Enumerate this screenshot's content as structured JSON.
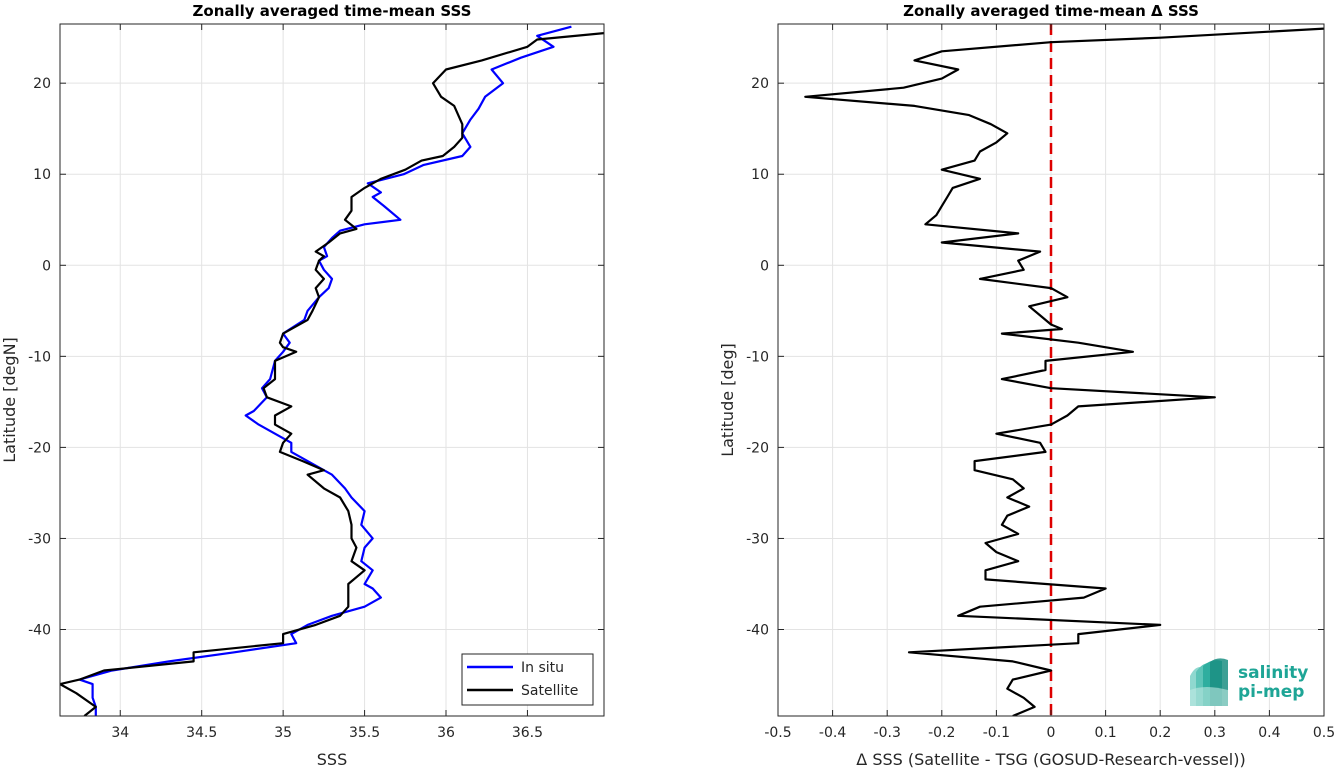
{
  "chart_data": [
    {
      "type": "line",
      "title": "Zonally averaged time-mean SSS",
      "xlabel": "SSS",
      "ylabel": "Latitude [degN]",
      "xlim": [
        33.63,
        36.97
      ],
      "ylim": [
        -49.5,
        26.5
      ],
      "xticks": [
        34,
        34.5,
        35,
        35.5,
        36,
        36.5
      ],
      "xtick_labels": [
        "34",
        "34.5",
        "35",
        "35.5",
        "36",
        "36.5"
      ],
      "yticks": [
        20,
        10,
        0,
        -10,
        -20,
        -30,
        -40
      ],
      "ytick_labels": [
        "20",
        "10",
        "0",
        "-10",
        "-20",
        "-30",
        "-40"
      ],
      "grid": true,
      "legend": "bottom-right",
      "series": [
        {
          "name": "In situ",
          "color": "#0000ff",
          "lat": [
            26.2,
            25.2,
            24.0,
            22.8,
            21.5,
            20.0,
            18.5,
            17.2,
            16.0,
            14.5,
            13.0,
            12.0,
            11.0,
            10.0,
            9.0,
            8.0,
            7.5,
            6.5,
            5.0,
            4.5,
            3.8,
            3.0,
            2.0,
            1.0,
            0.5,
            -0.5,
            -1.5,
            -2.5,
            -3.5,
            -5.0,
            -6.0,
            -7.5,
            -8.5,
            -9.5,
            -10.5,
            -12.5,
            -13.5,
            -14.5,
            -16.0,
            -16.5,
            -17.5,
            -18.5,
            -19.5,
            -20.5,
            -21.5,
            -22.5,
            -23.0,
            -24.5,
            -25.5,
            -27.0,
            -28.5,
            -30.0,
            -31.0,
            -32.5,
            -33.5,
            -35.0,
            -35.5,
            -36.5,
            -37.5,
            -38.5,
            -39.5,
            -40.5,
            -41.5,
            -42.5,
            -43.5,
            -44.5,
            -45.5,
            -46.0,
            -47.5,
            -48.5,
            -49.5
          ],
          "values": [
            36.77,
            36.56,
            36.66,
            36.46,
            36.28,
            36.35,
            36.24,
            36.2,
            36.15,
            36.1,
            36.15,
            36.1,
            35.86,
            35.74,
            35.52,
            35.6,
            35.55,
            35.62,
            35.72,
            35.5,
            35.35,
            35.3,
            35.25,
            35.27,
            35.22,
            35.25,
            35.3,
            35.28,
            35.22,
            35.15,
            35.13,
            35.0,
            35.04,
            35.0,
            34.95,
            34.92,
            34.87,
            34.9,
            34.82,
            34.77,
            34.85,
            34.95,
            35.05,
            35.05,
            35.15,
            35.25,
            35.3,
            35.38,
            35.42,
            35.5,
            35.48,
            35.55,
            35.5,
            35.48,
            35.55,
            35.5,
            35.55,
            35.6,
            35.5,
            35.3,
            35.15,
            35.05,
            35.08,
            34.7,
            34.3,
            33.95,
            33.75,
            33.83,
            33.83,
            33.85,
            33.85
          ]
        },
        {
          "name": "Satellite",
          "color": "#000000",
          "lat": [
            25.5,
            24.8,
            24.0,
            22.5,
            21.5,
            20.0,
            18.5,
            17.5,
            15.5,
            14.0,
            13.0,
            12.0,
            11.5,
            10.5,
            9.5,
            8.5,
            7.5,
            6.0,
            5.0,
            4.0,
            3.5,
            2.5,
            1.5,
            1.0,
            0.5,
            -0.5,
            -1.5,
            -2.5,
            -3.5,
            -5.0,
            -6.0,
            -7.5,
            -8.5,
            -9.0,
            -9.5,
            -10.5,
            -12.5,
            -13.5,
            -14.5,
            -15.5,
            -16.5,
            -17.5,
            -18.5,
            -19.5,
            -20.5,
            -21.5,
            -22.5,
            -23.0,
            -24.5,
            -25.5,
            -27.0,
            -28.5,
            -30.0,
            -31.0,
            -32.5,
            -33.5,
            -35.0,
            -36.5,
            -37.5,
            -38.5,
            -39.5,
            -40.5,
            -41.5,
            -42.5,
            -43.5,
            -44.5,
            -45.5,
            -46.0,
            -47.0,
            -48.5,
            -49.5
          ],
          "values": [
            36.97,
            36.56,
            36.5,
            36.22,
            36.0,
            35.92,
            35.97,
            36.05,
            36.1,
            36.1,
            36.05,
            35.98,
            35.85,
            35.75,
            35.6,
            35.5,
            35.42,
            35.42,
            35.38,
            35.45,
            35.35,
            35.28,
            35.2,
            35.25,
            35.22,
            35.2,
            35.25,
            35.2,
            35.22,
            35.18,
            35.15,
            35.0,
            34.98,
            35.0,
            35.08,
            34.95,
            34.95,
            34.88,
            34.9,
            35.05,
            34.95,
            34.95,
            35.05,
            35.0,
            34.98,
            35.12,
            35.25,
            35.15,
            35.25,
            35.35,
            35.4,
            35.42,
            35.42,
            35.45,
            35.42,
            35.5,
            35.4,
            35.4,
            35.4,
            35.35,
            35.2,
            35.0,
            35.0,
            34.45,
            34.45,
            33.9,
            33.75,
            33.63,
            33.73,
            33.85,
            33.78
          ]
        }
      ]
    },
    {
      "type": "line",
      "title": "Zonally averaged time-mean Δ SSS",
      "xlabel": "Δ SSS (Satellite - TSG (GOSUD-Research-vessel))",
      "ylabel": "Latitude [deg]",
      "xlim": [
        -0.5,
        0.5
      ],
      "ylim": [
        -49.5,
        26.5
      ],
      "xticks": [
        -0.5,
        -0.4,
        -0.3,
        -0.2,
        -0.1,
        0,
        0.1,
        0.2,
        0.3,
        0.4,
        0.5
      ],
      "xtick_labels": [
        "-0.5",
        "-0.4",
        "-0.3",
        "-0.2",
        "-0.1",
        "0",
        "0.1",
        "0.2",
        "0.3",
        "0.4",
        "0.5"
      ],
      "yticks": [
        20,
        10,
        0,
        -10,
        -20,
        -30,
        -40
      ],
      "ytick_labels": [
        "20",
        "10",
        "0",
        "-10",
        "-20",
        "-30",
        "-40"
      ],
      "grid": true,
      "reference_line": {
        "x": 0,
        "color": "#dd0000",
        "style": "dashed"
      },
      "series": [
        {
          "color": "#000000",
          "lat": [
            26.0,
            25.0,
            24.5,
            23.5,
            22.5,
            21.5,
            20.5,
            19.5,
            18.5,
            17.5,
            16.5,
            15.5,
            14.5,
            13.5,
            12.5,
            11.5,
            10.5,
            9.5,
            8.5,
            7.5,
            6.5,
            5.5,
            4.5,
            3.5,
            2.5,
            1.5,
            0.5,
            -0.5,
            -1.5,
            -2.5,
            -3.5,
            -4.5,
            -5.5,
            -6.5,
            -7.0,
            -7.5,
            -8.5,
            -9.5,
            -10.5,
            -11.5,
            -12.5,
            -13.5,
            -14.5,
            -15.5,
            -16.5,
            -17.5,
            -18.5,
            -19.5,
            -20.5,
            -21.5,
            -22.5,
            -23.5,
            -24.5,
            -25.5,
            -26.5,
            -27.5,
            -28.5,
            -29.5,
            -30.5,
            -31.5,
            -32.5,
            -33.5,
            -34.5,
            -35.5,
            -36.5,
            -37.5,
            -38.5,
            -39.5,
            -40.5,
            -41.5,
            -42.5,
            -43.5,
            -44.5,
            -45.5,
            -46.5,
            -47.5,
            -48.5,
            -49.5
          ],
          "values": [
            0.5,
            0.2,
            0.0,
            -0.2,
            -0.25,
            -0.17,
            -0.2,
            -0.27,
            -0.45,
            -0.25,
            -0.15,
            -0.11,
            -0.08,
            -0.1,
            -0.13,
            -0.14,
            -0.2,
            -0.13,
            -0.18,
            -0.19,
            -0.2,
            -0.21,
            -0.23,
            -0.06,
            -0.2,
            -0.02,
            -0.06,
            -0.05,
            -0.13,
            0.0,
            0.03,
            -0.04,
            -0.02,
            0.0,
            0.02,
            -0.09,
            0.05,
            0.15,
            -0.01,
            -0.01,
            -0.09,
            0.0,
            0.3,
            0.05,
            0.03,
            0.0,
            -0.1,
            -0.02,
            -0.01,
            -0.14,
            -0.14,
            -0.07,
            -0.05,
            -0.08,
            -0.04,
            -0.08,
            -0.09,
            -0.06,
            -0.12,
            -0.1,
            -0.06,
            -0.12,
            -0.12,
            0.1,
            0.06,
            -0.13,
            -0.17,
            0.2,
            0.05,
            0.05,
            -0.26,
            -0.07,
            0.0,
            -0.07,
            -0.08,
            -0.05,
            -0.03,
            -0.07
          ]
        }
      ]
    }
  ],
  "legend": {
    "items": [
      "In situ",
      "Satellite"
    ]
  },
  "logo": {
    "line1": "salinity",
    "line2": "pi-mep"
  }
}
